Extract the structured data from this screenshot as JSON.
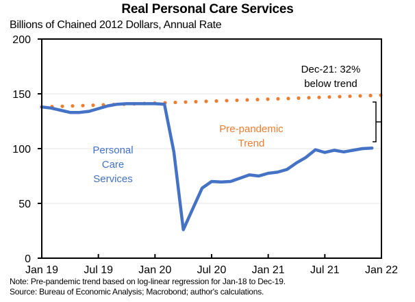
{
  "chart_data": {
    "type": "line",
    "title": "Real Personal Care Services",
    "subtitle": "Billions of Chained 2012 Dollars, Annual Rate",
    "xlabel": "",
    "ylabel": "",
    "ylim": [
      0,
      200
    ],
    "yticks": [
      0,
      50,
      100,
      150,
      200
    ],
    "xlim": [
      "Jan 19",
      "Jan 22"
    ],
    "xtick_labels": [
      "Jan 19",
      "Jul 19",
      "Jan 20",
      "Jul 20",
      "Jan 21",
      "Jul 21",
      "Jan 22"
    ],
    "grid": "horizontal",
    "x": [
      "Jan-19",
      "Feb-19",
      "Mar-19",
      "Apr-19",
      "May-19",
      "Jun-19",
      "Jul-19",
      "Aug-19",
      "Sep-19",
      "Oct-19",
      "Nov-19",
      "Dec-19",
      "Jan-20",
      "Feb-20",
      "Mar-20",
      "Apr-20",
      "May-20",
      "Jun-20",
      "Jul-20",
      "Aug-20",
      "Sep-20",
      "Oct-20",
      "Nov-20",
      "Dec-20",
      "Jan-21",
      "Feb-21",
      "Mar-21",
      "Apr-21",
      "May-21",
      "Jun-21",
      "Jul-21",
      "Aug-21",
      "Sep-21",
      "Oct-21",
      "Nov-21",
      "Dec-21"
    ],
    "series": [
      {
        "name": "Personal Care Services",
        "style": "solid",
        "color": "#4472C4",
        "values": [
          138,
          137,
          135,
          133,
          133,
          134,
          136.5,
          139,
          140.5,
          141,
          141,
          141,
          141,
          140.5,
          97,
          26,
          45,
          64,
          70,
          69.5,
          70,
          73,
          76,
          75,
          77.5,
          78.5,
          81,
          87,
          92,
          99,
          96.5,
          98.5,
          97,
          98.5,
          100,
          100.5
        ]
      },
      {
        "name": "Pre-pandemic Trend",
        "style": "dotted",
        "color": "#ED7D31",
        "start_value": 138,
        "end_value": 148.8,
        "values_note": "log-linear trend, Jan-19 to Jan-22"
      }
    ],
    "annotations": [
      {
        "text": "Personal Care Services",
        "lines": [
          "Personal",
          "Care",
          "Services"
        ],
        "color": "#4472C4"
      },
      {
        "text": "Pre-pandemic Trend",
        "lines": [
          "Pre-pandemic",
          "Trend"
        ],
        "color": "#ED7D31"
      },
      {
        "text": "Dec-21: 32% below trend",
        "lines": [
          "Dec-21: 32%",
          "below trend"
        ],
        "color": "#000000"
      }
    ]
  },
  "notes": {
    "note": "Note: Pre-pandemic trend based on log-linear regression for Jan-18 to Dec-19.",
    "source": "Source: Bureau of Economic Analysis; Macrobond; author's calculations."
  }
}
